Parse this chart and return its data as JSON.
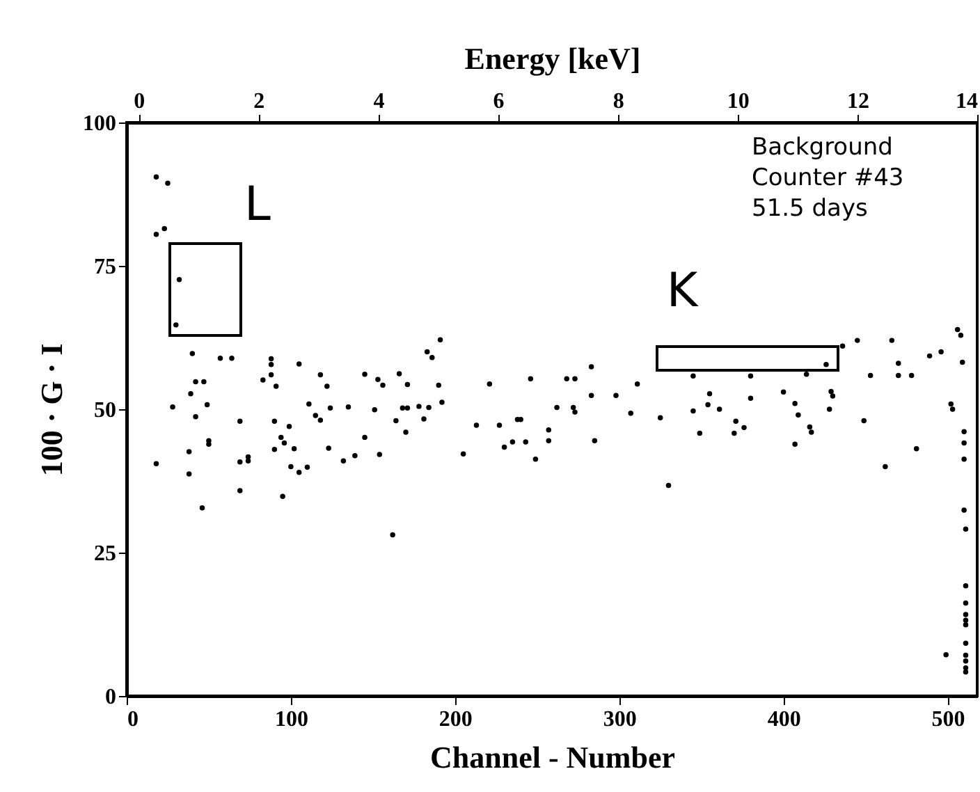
{
  "chart_data": {
    "type": "scatter",
    "xlabel": "Channel - Number",
    "ylabel": "100 · G · I",
    "x2label": "Energy [keV]",
    "xlim": [
      0,
      518
    ],
    "xticks": [
      0,
      100,
      200,
      300,
      400,
      500
    ],
    "ylim": [
      0,
      100
    ],
    "yticks": [
      0,
      25,
      50,
      75,
      100
    ],
    "x2lim": [
      -0.2,
      14
    ],
    "x2ticks": [
      0,
      2,
      4,
      6,
      8,
      10,
      12,
      14
    ],
    "grid": false,
    "marker": "circle",
    "series": [
      {
        "color": "#000000",
        "x": [
          18,
          25,
          18,
          23,
          32,
          30,
          40,
          57,
          64,
          88,
          88,
          105,
          183,
          186,
          191,
          42,
          47,
          39,
          28,
          49,
          42,
          83,
          88,
          91,
          118,
          122,
          145,
          153,
          156,
          166,
          171,
          190,
          221,
          246,
          111,
          115,
          118,
          124,
          135,
          151,
          168,
          171,
          178,
          184,
          192,
          181,
          164,
          170,
          69,
          90,
          99,
          94,
          96,
          90,
          102,
          123,
          145,
          50,
          50,
          38,
          18,
          38,
          69,
          74,
          74,
          100,
          105,
          110,
          132,
          139,
          154,
          69,
          95,
          46,
          205,
          213,
          227,
          238,
          240,
          230,
          235,
          243,
          249,
          162,
          268,
          273,
          283,
          311,
          283,
          298,
          262,
          272,
          273,
          307,
          325,
          345,
          380,
          414,
          426,
          436,
          445,
          466,
          453,
          470,
          470,
          478,
          489,
          496,
          506,
          508,
          509,
          355,
          354,
          361,
          380,
          400,
          407,
          409,
          429,
          430,
          428,
          502,
          503,
          345,
          349,
          370,
          371,
          376,
          407,
          416,
          417,
          449,
          510,
          510,
          510,
          481,
          462,
          330,
          510,
          511,
          511,
          511,
          511,
          511,
          511,
          511,
          511,
          511,
          511,
          511,
          499,
          257,
          257,
          285
        ],
        "values": [
          90.5,
          89.4,
          80.5,
          81.5,
          72.6,
          64.7,
          59.7,
          58.9,
          58.9,
          58.8,
          57.8,
          57.9,
          60,
          59,
          62.1,
          54.8,
          54.8,
          52.7,
          50.4,
          50.8,
          48.7,
          55.1,
          56,
          54,
          56,
          54,
          56.1,
          55.2,
          54.2,
          56.2,
          54.3,
          54.2,
          54.4,
          55.3,
          50.9,
          48.9,
          48.1,
          50.2,
          50.4,
          49.9,
          50.2,
          50.2,
          50.5,
          50.3,
          51.2,
          48.3,
          48,
          46,
          47.9,
          47.9,
          47,
          45.1,
          44.1,
          43,
          43.1,
          43.2,
          45.1,
          44.5,
          43.9,
          42.6,
          40.5,
          38.7,
          40.8,
          41.7,
          41,
          40,
          39,
          39.9,
          41,
          41.9,
          42.1,
          35.8,
          34.8,
          32.8,
          42.2,
          47.2,
          47.2,
          48.2,
          48.2,
          43.4,
          44.3,
          44.3,
          41.3,
          28.1,
          55.3,
          55.3,
          57.4,
          54.4,
          52.4,
          52.4,
          50.3,
          50.3,
          49.5,
          49.3,
          48.5,
          55.8,
          55.8,
          56.1,
          57.8,
          61,
          62,
          62,
          55.9,
          58,
          55.9,
          55.9,
          59.3,
          60,
          63.9,
          62.9,
          58.2,
          52.7,
          50.8,
          50,
          51.9,
          53,
          51,
          49,
          53.1,
          52.3,
          50,
          50.9,
          50,
          49.7,
          45.8,
          45.8,
          47.9,
          46.8,
          43.9,
          46.9,
          46,
          48,
          46.1,
          44.1,
          41.3,
          43.1,
          40,
          36.7,
          32.4,
          29.1,
          19.2,
          16.2,
          14.2,
          13.2,
          12.4,
          9.2,
          7.1,
          6.1,
          4.9,
          4.2,
          7.2,
          44.5,
          46.4,
          44.5
        ]
      }
    ],
    "annotations": [
      "Background",
      "Counter #43",
      "51.5 days",
      "L",
      "K"
    ]
  }
}
